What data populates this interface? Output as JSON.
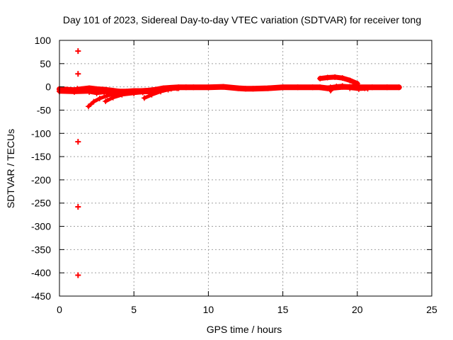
{
  "chart_data": {
    "type": "scatter",
    "title": "Day 101 of 2023, Sidereal Day-to-day VTEC variation (SDTVAR) for receiver tong",
    "xlabel": "GPS time / hours",
    "ylabel": "SDTVAR / TECUs",
    "xlim": [
      0,
      25
    ],
    "ylim": [
      -450,
      100
    ],
    "xticks": [
      0,
      5,
      10,
      15,
      20,
      25
    ],
    "yticks": [
      100,
      50,
      0,
      -50,
      -100,
      -150,
      -200,
      -250,
      -300,
      -350,
      -400,
      -450
    ],
    "grid": true,
    "legend": "none",
    "series_color": "#ff0000",
    "marker": "plus",
    "outliers": [
      {
        "x": 1.25,
        "y": 77
      },
      {
        "x": 1.25,
        "y": 28
      },
      {
        "x": 1.25,
        "y": -118
      },
      {
        "x": 1.25,
        "y": -258
      },
      {
        "x": 1.25,
        "y": -405
      }
    ],
    "traces": [
      {
        "name": "main-band",
        "points": [
          [
            0,
            -5
          ],
          [
            0.5,
            -6
          ],
          [
            1,
            -7
          ],
          [
            1.5,
            -5
          ],
          [
            2,
            -3
          ],
          [
            2.5,
            -5
          ],
          [
            3,
            -6
          ],
          [
            3.5,
            -8
          ],
          [
            4,
            -10
          ],
          [
            4.5,
            -10
          ],
          [
            5,
            -9
          ],
          [
            5.5,
            -9
          ],
          [
            6,
            -8
          ],
          [
            6.5,
            -6
          ],
          [
            7,
            -3
          ],
          [
            7.5,
            -2
          ],
          [
            8,
            -1
          ],
          [
            9,
            -1
          ],
          [
            10,
            -1
          ],
          [
            11,
            0
          ],
          [
            12,
            -3
          ],
          [
            12.5,
            -4
          ],
          [
            13,
            -4
          ],
          [
            14,
            -3
          ],
          [
            15,
            -1
          ],
          [
            16,
            -1
          ],
          [
            17,
            -1
          ],
          [
            17.5,
            -1
          ],
          [
            18,
            -3
          ],
          [
            19,
            0
          ],
          [
            20,
            -1
          ],
          [
            21,
            -1
          ],
          [
            22,
            -1
          ],
          [
            22.8,
            -1
          ]
        ]
      },
      {
        "name": "band-low",
        "points": [
          [
            0,
            -10
          ],
          [
            1,
            -11
          ],
          [
            2,
            -10
          ],
          [
            3,
            -11
          ],
          [
            4,
            -12
          ],
          [
            5,
            -12
          ],
          [
            6,
            -11
          ],
          [
            6.5,
            -9
          ],
          [
            7,
            -6
          ],
          [
            7.5,
            -4
          ],
          [
            8,
            -3
          ]
        ]
      },
      {
        "name": "dip-1",
        "points": [
          [
            1.2,
            -4
          ],
          [
            1.5,
            -7
          ],
          [
            2,
            -11
          ],
          [
            2.5,
            -14
          ],
          [
            3,
            -12
          ],
          [
            3.3,
            -9
          ]
        ]
      },
      {
        "name": "arc-1",
        "points": [
          [
            1.95,
            -42
          ],
          [
            2.3,
            -32
          ],
          [
            2.7,
            -25
          ],
          [
            3.2,
            -19
          ],
          [
            3.8,
            -15
          ],
          [
            4.5,
            -12
          ],
          [
            5.2,
            -10
          ]
        ]
      },
      {
        "name": "arc-2",
        "points": [
          [
            3.1,
            -31
          ],
          [
            3.6,
            -23
          ],
          [
            4.2,
            -17
          ],
          [
            5,
            -14
          ],
          [
            5.6,
            -12
          ],
          [
            6.2,
            -11
          ]
        ]
      },
      {
        "name": "arc-3",
        "points": [
          [
            5.7,
            -24
          ],
          [
            6.2,
            -17
          ],
          [
            6.8,
            -10
          ],
          [
            7.3,
            -6
          ],
          [
            7.9,
            -3
          ],
          [
            8.5,
            -1
          ]
        ]
      },
      {
        "name": "hump-1",
        "points": [
          [
            17.5,
            18
          ],
          [
            18,
            20
          ],
          [
            18.5,
            21
          ],
          [
            19,
            19
          ],
          [
            19.5,
            14
          ],
          [
            20,
            7
          ]
        ]
      },
      {
        "name": "hump-2",
        "points": [
          [
            18.2,
            -1
          ],
          [
            18.6,
            1
          ],
          [
            19.0,
            2
          ],
          [
            19.5,
            0
          ],
          [
            20.0,
            -2
          ],
          [
            20.5,
            -3
          ]
        ]
      },
      {
        "name": "blip-1",
        "points": [
          [
            18.2,
            -8
          ],
          [
            18.25,
            -6
          ],
          [
            18.3,
            -4
          ]
        ]
      },
      {
        "name": "blip-2",
        "points": [
          [
            19.5,
            -3
          ],
          [
            20.1,
            -5
          ],
          [
            20.7,
            -4
          ]
        ]
      }
    ]
  }
}
